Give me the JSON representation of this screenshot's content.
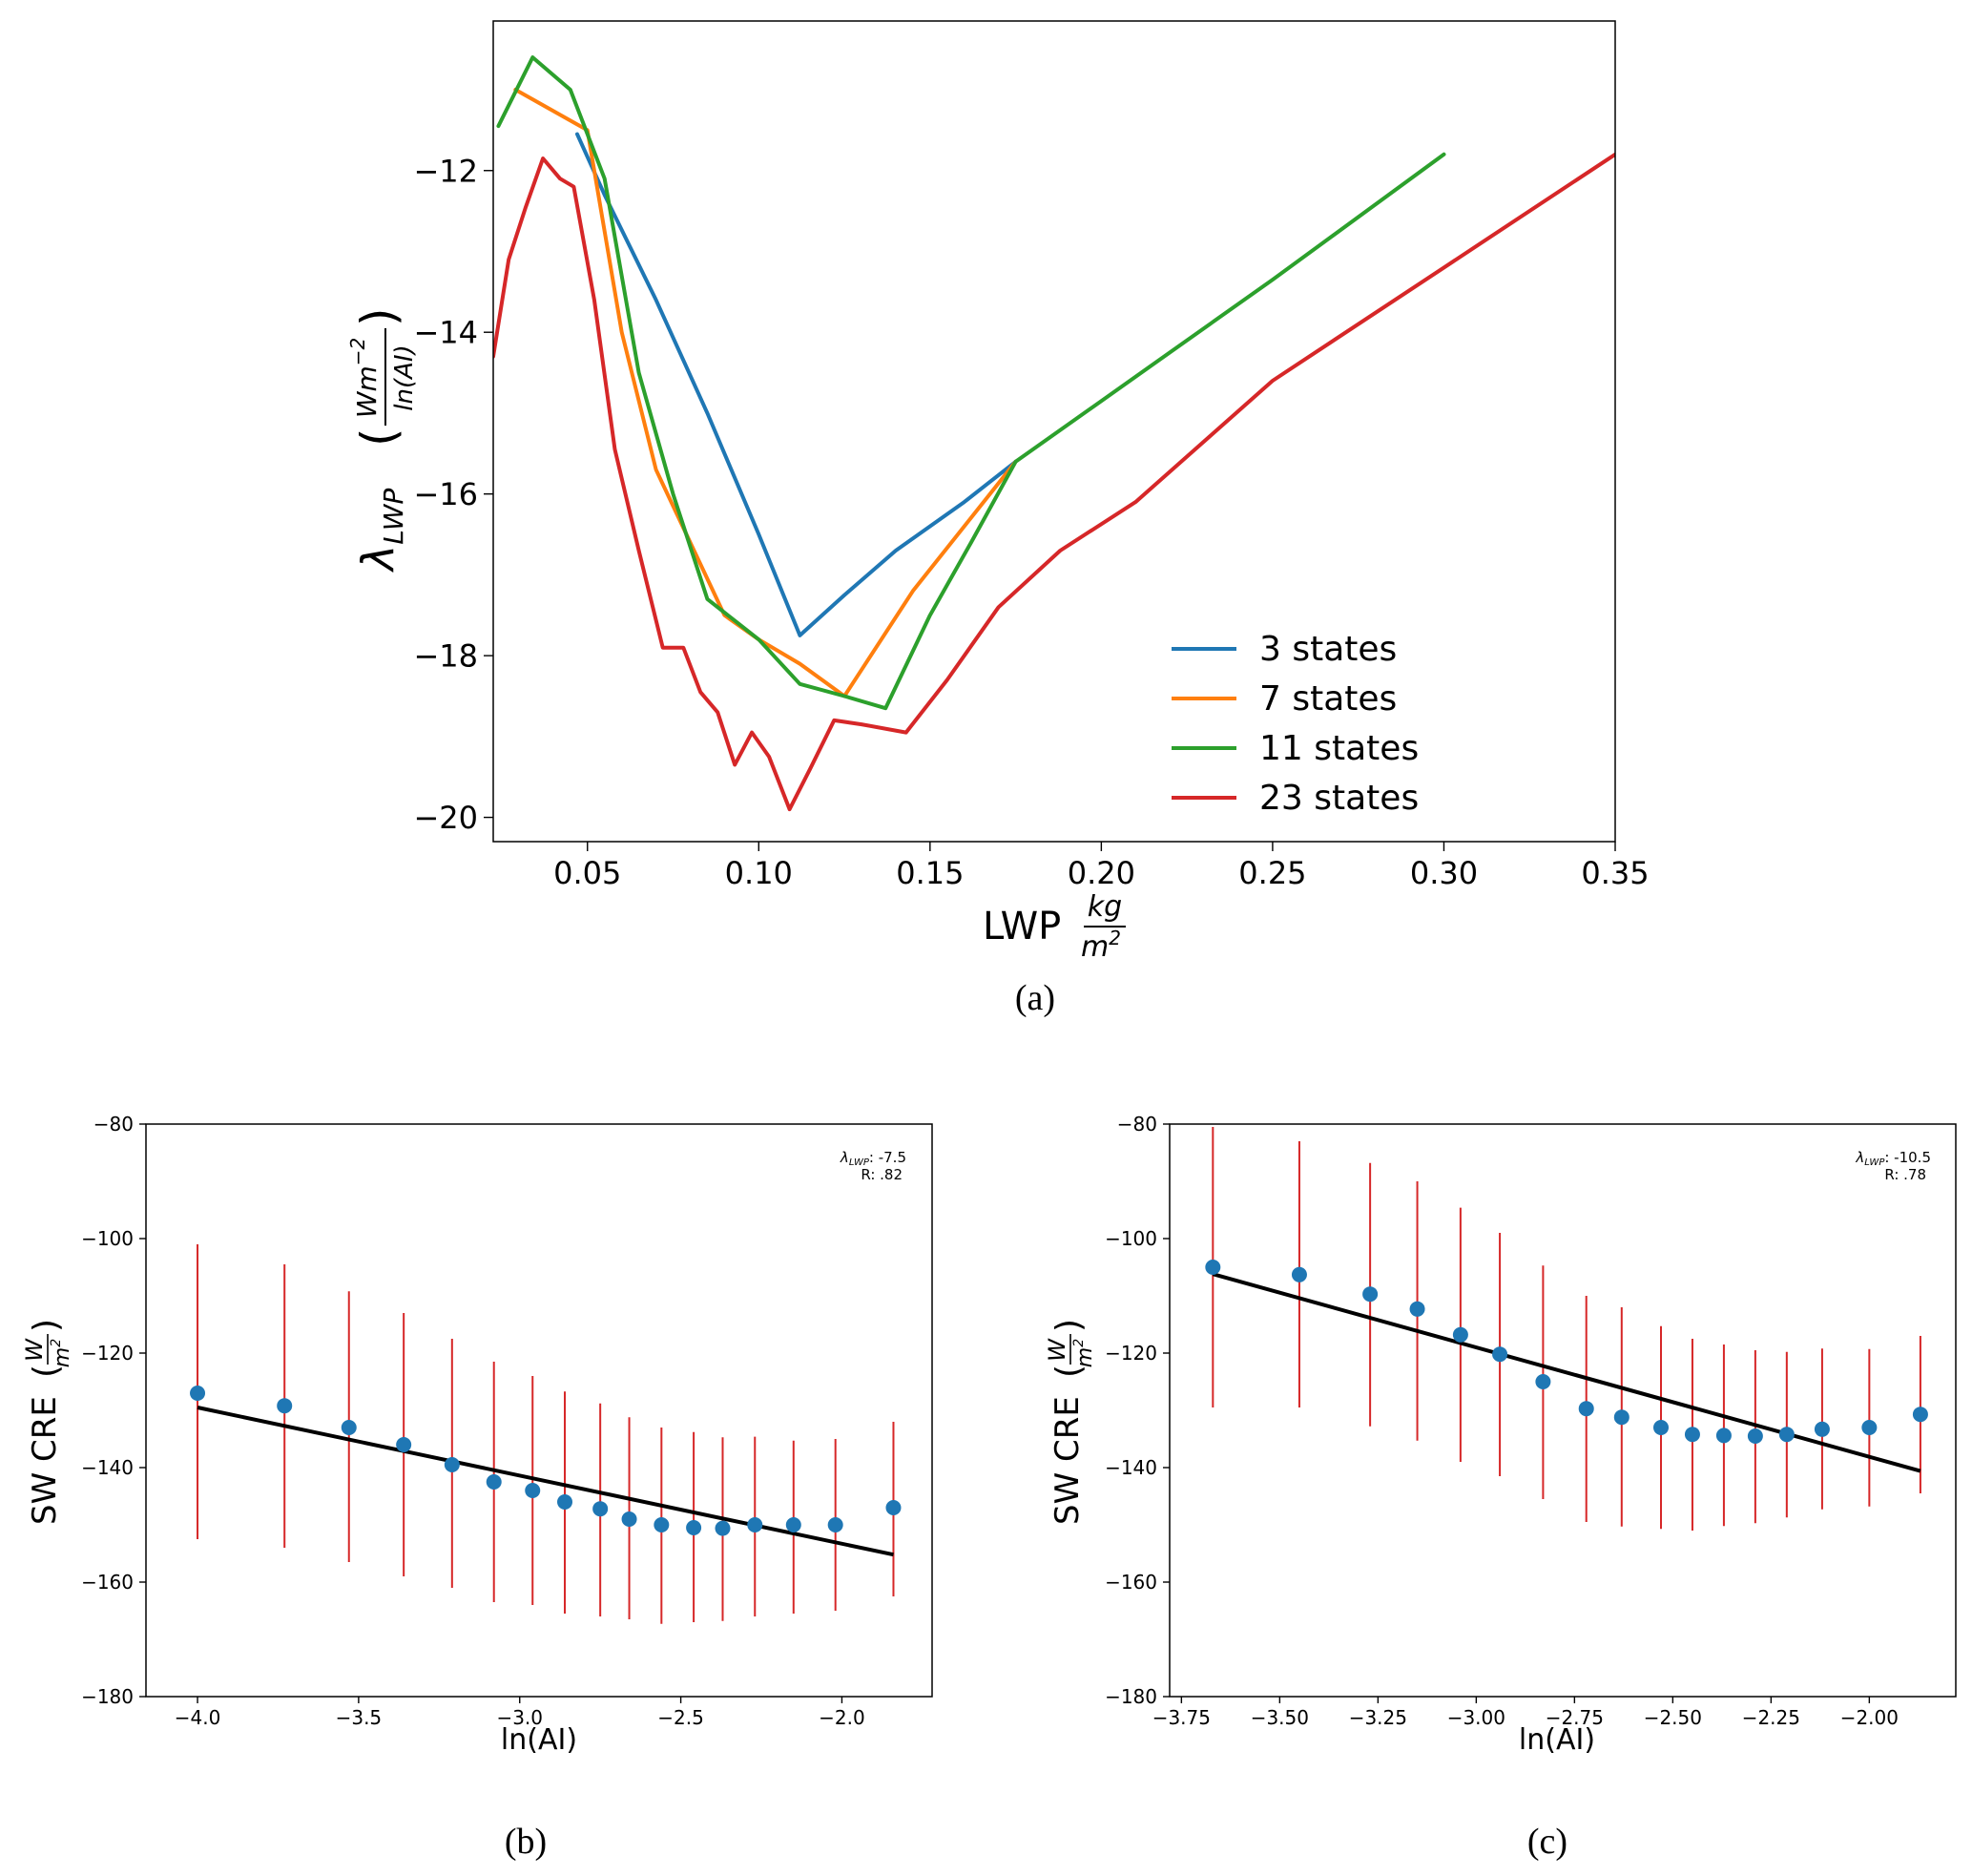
{
  "chart_data": [
    {
      "type": "line",
      "caption": "(a)",
      "xlabel": "LWP",
      "xlabel_unit_num": "kg",
      "xlabel_unit_den": "m",
      "ylabel_symbol": "λ",
      "ylabel_subscript": "LWP",
      "ylabel_unit_num": "Wm",
      "ylabel_unit_num_exp": "−2",
      "ylabel_unit_den": "ln(AI)",
      "xlim": [
        0.0225,
        0.35
      ],
      "ylim": [
        -20.3,
        -10.15
      ],
      "xticks": [
        0.05,
        0.1,
        0.15,
        0.2,
        0.25,
        0.3,
        0.35
      ],
      "xtick_labels": [
        "0.05",
        "0.10",
        "0.15",
        "0.20",
        "0.25",
        "0.30",
        "0.35"
      ],
      "yticks": [
        -20,
        -18,
        -16,
        -14,
        -12
      ],
      "ytick_labels": [
        "−20",
        "−18",
        "−16",
        "−14",
        "−12"
      ],
      "legend_position": "lower-right",
      "series": [
        {
          "name": "3 states",
          "color": "#1f77b4",
          "x": [
            0.047,
            0.055,
            0.07,
            0.085,
            0.1,
            0.112,
            0.125,
            0.14,
            0.16,
            0.175
          ],
          "y": [
            -11.55,
            -12.3,
            -13.6,
            -15.0,
            -16.5,
            -17.75,
            -17.25,
            -16.7,
            -16.1,
            -15.6
          ]
        },
        {
          "name": "7 states",
          "color": "#ff7f0e",
          "x": [
            0.029,
            0.05,
            0.06,
            0.07,
            0.08,
            0.09,
            0.1,
            0.112,
            0.125,
            0.145,
            0.175
          ],
          "y": [
            -11.0,
            -11.5,
            -14.0,
            -15.7,
            -16.6,
            -17.5,
            -17.8,
            -18.1,
            -18.5,
            -17.2,
            -15.6
          ]
        },
        {
          "name": "11 states",
          "color": "#2ca02c",
          "x": [
            0.024,
            0.034,
            0.045,
            0.055,
            0.065,
            0.075,
            0.085,
            0.1,
            0.112,
            0.125,
            0.137,
            0.15,
            0.162,
            0.175,
            0.2,
            0.25,
            0.3
          ],
          "y": [
            -11.45,
            -10.6,
            -11.0,
            -12.1,
            -14.5,
            -16.0,
            -17.3,
            -17.8,
            -18.35,
            -18.5,
            -18.65,
            -17.5,
            -16.6,
            -15.6,
            -14.85,
            -13.35,
            -11.8
          ]
        },
        {
          "name": "23 states",
          "color": "#d62728",
          "x": [
            0.0225,
            0.027,
            0.032,
            0.037,
            0.042,
            0.046,
            0.052,
            0.058,
            0.065,
            0.072,
            0.078,
            0.083,
            0.088,
            0.093,
            0.098,
            0.103,
            0.109,
            0.115,
            0.122,
            0.13,
            0.143,
            0.155,
            0.17,
            0.188,
            0.21,
            0.25,
            0.3,
            0.35
          ],
          "y": [
            -14.3,
            -13.1,
            -12.45,
            -11.85,
            -12.1,
            -12.2,
            -13.6,
            -15.45,
            -16.7,
            -17.9,
            -17.9,
            -18.45,
            -18.7,
            -19.35,
            -18.95,
            -19.25,
            -19.9,
            -19.4,
            -18.8,
            -18.85,
            -18.95,
            -18.3,
            -17.4,
            -16.7,
            -16.1,
            -14.6,
            -13.2,
            -11.8
          ]
        }
      ]
    },
    {
      "type": "scatter",
      "caption": "(b)",
      "xlabel": "ln(AI)",
      "ylabel": "SW CRE",
      "ylabel_unit_num": "W",
      "ylabel_unit_den": "m",
      "xlim": [
        -4.16,
        -1.72
      ],
      "ylim": [
        -180,
        -80
      ],
      "xticks": [
        -4.0,
        -3.5,
        -3.0,
        -2.5,
        -2.0
      ],
      "xtick_labels": [
        "−4.0",
        "−3.5",
        "−3.0",
        "−2.5",
        "−2.0"
      ],
      "yticks": [
        -180,
        -160,
        -140,
        -120,
        -100,
        -80
      ],
      "ytick_labels": [
        "−180",
        "−160",
        "−140",
        "−120",
        "−100",
        "−80"
      ],
      "annotation_symbol": "λ",
      "annotation_subscript": "LWP",
      "annotation_value": ": -7.5",
      "annotation_r": "R: .82",
      "fit_line": {
        "x": [
          -4.0,
          -1.84
        ],
        "y": [
          -129.5,
          -155.2
        ]
      },
      "points": {
        "x": [
          -4.0,
          -3.73,
          -3.53,
          -3.36,
          -3.21,
          -3.08,
          -2.96,
          -2.86,
          -2.75,
          -2.66,
          -2.56,
          -2.46,
          -2.37,
          -2.27,
          -2.15,
          -2.02,
          -1.84
        ],
        "y": [
          -127,
          -129.2,
          -133,
          -136,
          -139.5,
          -142.5,
          -144,
          -146,
          -147.2,
          -149,
          -150,
          -150.5,
          -150.6,
          -150,
          -150,
          -150,
          -147
        ],
        "err_low": [
          -152.5,
          -154,
          -156.5,
          -159,
          -161,
          -163.5,
          -164,
          -165.5,
          -166,
          -166.5,
          -167.3,
          -167,
          -166.8,
          -166,
          -165.5,
          -165,
          -162.5
        ],
        "err_high": [
          -101,
          -104.5,
          -109.2,
          -113,
          -117.5,
          -121.5,
          -124,
          -126.7,
          -128.8,
          -131.2,
          -133,
          -133.8,
          -134.7,
          -134.6,
          -135.3,
          -135,
          -132
        ]
      },
      "point_color": "#1f77b4",
      "error_color": "#d62728",
      "line_color": "#000000"
    },
    {
      "type": "scatter",
      "caption": "(c)",
      "xlabel": "ln(AI)",
      "ylabel": "SW CRE",
      "ylabel_unit_num": "W",
      "ylabel_unit_den": "m",
      "xlim": [
        -3.78,
        -1.78
      ],
      "ylim": [
        -180,
        -80
      ],
      "xticks": [
        -3.75,
        -3.5,
        -3.25,
        -3.0,
        -2.75,
        -2.5,
        -2.25,
        -2.0
      ],
      "xtick_labels": [
        "−3.75",
        "−3.50",
        "−3.25",
        "−3.00",
        "−2.75",
        "−2.50",
        "−2.25",
        "−2.00"
      ],
      "yticks": [
        -180,
        -160,
        -140,
        -120,
        -100,
        -80
      ],
      "ytick_labels": [
        "−180",
        "−160",
        "−140",
        "−120",
        "−100",
        "−80"
      ],
      "annotation_symbol": "λ",
      "annotation_subscript": "LWP",
      "annotation_value": ": -10.5",
      "annotation_r": "R: .78",
      "fit_line": {
        "x": [
          -3.67,
          -1.87
        ],
        "y": [
          -106.2,
          -140.6
        ]
      },
      "points": {
        "x": [
          -3.67,
          -3.45,
          -3.27,
          -3.15,
          -3.04,
          -2.94,
          -2.83,
          -2.72,
          -2.63,
          -2.53,
          -2.45,
          -2.37,
          -2.29,
          -2.21,
          -2.12,
          -2.0,
          -1.87
        ],
        "y": [
          -105,
          -106.3,
          -109.7,
          -112.3,
          -116.8,
          -120.2,
          -125,
          -129.7,
          -131.2,
          -133,
          -134.2,
          -134.4,
          -134.5,
          -134.2,
          -133.3,
          -133,
          -130.7
        ],
        "err_low": [
          -129.5,
          -129.5,
          -132.8,
          -135.3,
          -139,
          -141.5,
          -145.5,
          -149.5,
          -150.3,
          -150.7,
          -151,
          -150.2,
          -149.7,
          -148.7,
          -147.3,
          -146.8,
          -144.5
        ],
        "err_high": [
          -80.5,
          -83,
          -86.8,
          -90,
          -94.6,
          -99,
          -104.7,
          -110,
          -112,
          -115.3,
          -117.5,
          -118.5,
          -119.5,
          -119.8,
          -119.2,
          -119.3,
          -117
        ]
      },
      "point_color": "#1f77b4",
      "error_color": "#d62728",
      "line_color": "#000000"
    }
  ]
}
